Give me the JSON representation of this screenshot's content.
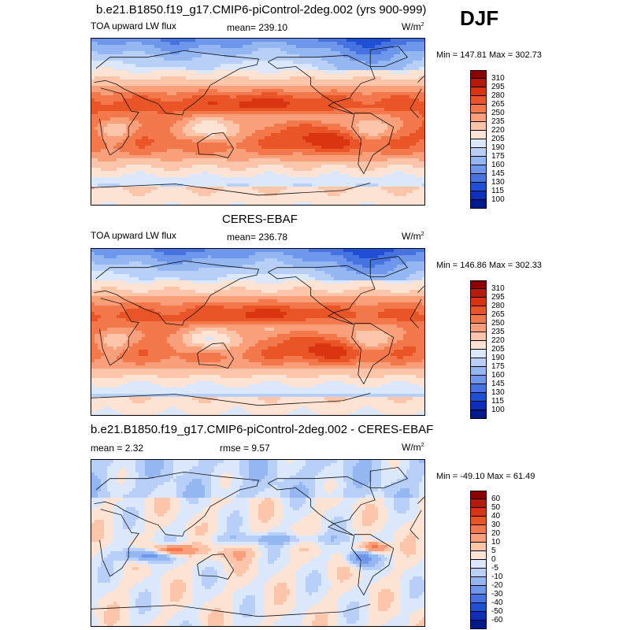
{
  "season": "DJF",
  "panels": [
    {
      "id": "model",
      "title": "b.e21.B1850.f19_g17.CMIP6-piControl-2deg.002 (yrs 900-999)",
      "left_label": "TOA upward LW flux",
      "center_label": "mean= 239.10",
      "units": "W/m",
      "units_sup": "2",
      "minmax": "Min = 147.81 Max = 302.73",
      "colorbar": {
        "levels": [
          "310",
          "295",
          "280",
          "265",
          "250",
          "235",
          "220",
          "205",
          "190",
          "175",
          "160",
          "145",
          "130",
          "115",
          "100"
        ],
        "colors": [
          "#8b0000",
          "#b51a0a",
          "#d83510",
          "#ea5528",
          "#f3784c",
          "#f9a07b",
          "#fcc4a8",
          "#fde3d3",
          "#dbe8fb",
          "#b8d0f7",
          "#94b6f1",
          "#6e96ea",
          "#4673e0",
          "#1f4fd4",
          "#0f2fb8",
          "#001a8a"
        ]
      },
      "map_pattern": "olr"
    },
    {
      "id": "obs",
      "title": "CERES-EBAF",
      "left_label": "TOA upward LW flux",
      "center_label": "mean= 236.78",
      "units": "W/m",
      "units_sup": "2",
      "minmax": "Min = 146.86 Max = 302.33",
      "colorbar": {
        "levels": [
          "310",
          "295",
          "280",
          "265",
          "250",
          "235",
          "220",
          "205",
          "190",
          "175",
          "160",
          "145",
          "130",
          "115",
          "100"
        ],
        "colors": [
          "#8b0000",
          "#b51a0a",
          "#d83510",
          "#ea5528",
          "#f3784c",
          "#f9a07b",
          "#fcc4a8",
          "#fde3d3",
          "#dbe8fb",
          "#b8d0f7",
          "#94b6f1",
          "#6e96ea",
          "#4673e0",
          "#1f4fd4",
          "#0f2fb8",
          "#001a8a"
        ]
      },
      "map_pattern": "olr"
    },
    {
      "id": "diff",
      "title": "b.e21.B1850.f19_g17.CMIP6-piControl-2deg.002 - CERES-EBAF",
      "left_label": "mean =   2.32",
      "center_label": "rmse =   9.57",
      "units": "W/m",
      "units_sup": "2",
      "minmax": "Min = -49.10 Max =  61.49",
      "colorbar": {
        "levels": [
          "60",
          "50",
          "40",
          "30",
          "20",
          "10",
          "5",
          "0",
          "-5",
          "-10",
          "-20",
          "-30",
          "-40",
          "-50",
          "-60"
        ],
        "colors": [
          "#8b0000",
          "#b51a0a",
          "#d83510",
          "#ea5528",
          "#f3784c",
          "#f9a07b",
          "#fcc4a8",
          "#fde3d3",
          "#dbe8fb",
          "#b8d0f7",
          "#94b6f1",
          "#6e96ea",
          "#4673e0",
          "#1f4fd4",
          "#0f2fb8",
          "#001a8a"
        ]
      },
      "map_pattern": "diff"
    }
  ]
}
